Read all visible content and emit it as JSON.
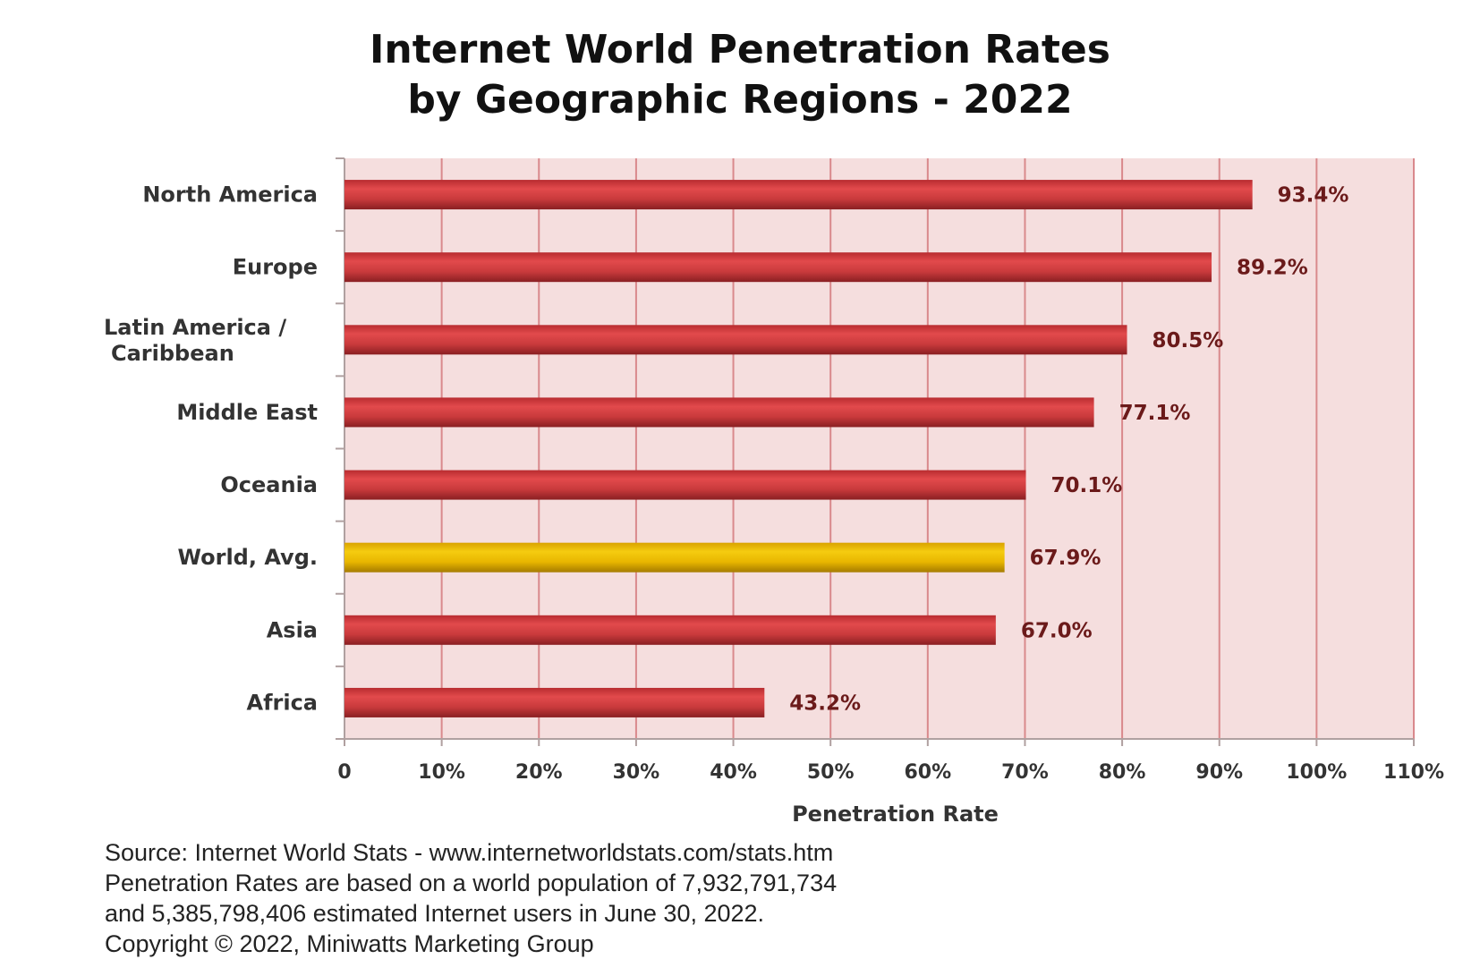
{
  "title": {
    "line1": "Internet World Penetration Rates",
    "line2": "by Geographic Regions -  2022"
  },
  "colors": {
    "plot_background": "#f5dede",
    "gridline": "#d9898c",
    "bar": "#c93a3c",
    "bar_highlight": "#e8b600"
  },
  "chart_data": {
    "type": "bar",
    "orientation": "horizontal",
    "categories": [
      "North America",
      "Europe",
      "Latin America / Caribbean",
      "Middle East",
      "Oceania",
      "World, Avg.",
      "Asia",
      "Africa"
    ],
    "category_label_lines": [
      [
        "North America"
      ],
      [
        "Europe"
      ],
      [
        "Latin America /",
        "Caribbean"
      ],
      [
        "Middle East"
      ],
      [
        "Oceania"
      ],
      [
        "World, Avg."
      ],
      [
        "Asia"
      ],
      [
        "Africa"
      ]
    ],
    "values": [
      93.4,
      89.2,
      80.5,
      77.1,
      70.1,
      67.9,
      67.0,
      43.2
    ],
    "data_labels": [
      "93.4%",
      "89.2%",
      "80.5%",
      "77.1%",
      "70.1%",
      "67.9%",
      "67.0%",
      "43.2%"
    ],
    "highlighted_category": "World, Avg.",
    "xlabel": "Penetration Rate",
    "ylabel": "",
    "xlim": [
      0,
      110
    ],
    "x_ticks": [
      0,
      10,
      20,
      30,
      40,
      50,
      60,
      70,
      80,
      90,
      100,
      110
    ],
    "x_tick_labels": [
      "0",
      "10%",
      "20%",
      "30%",
      "40%",
      "50%",
      "60%",
      "70%",
      "80%",
      "90%",
      "100%",
      "110%"
    ],
    "grid": "vertical"
  },
  "footer": {
    "line1": "Source: Internet World Stats - www.internetworldstats.com/stats.htm",
    "line2": "Penetration Rates are based on a world population of 7,932,791,734",
    "line3": "and 5,385,798,406 estimated Internet users in June 30, 2022.",
    "line4": "Copyright © 2022, Miniwatts Marketing Group"
  }
}
